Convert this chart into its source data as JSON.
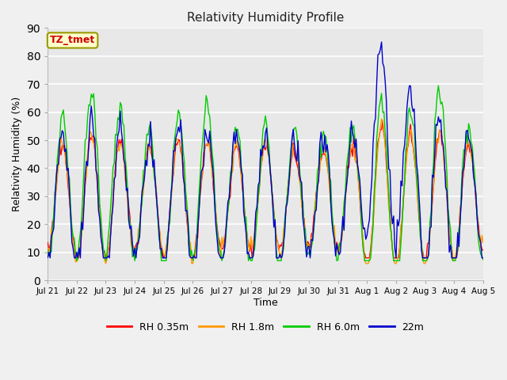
{
  "title": "Relativity Humidity Profile",
  "xlabel": "Time",
  "ylabel": "Relativity Humidity (%)",
  "ylim": [
    0,
    90
  ],
  "yticks": [
    0,
    10,
    20,
    30,
    40,
    50,
    60,
    70,
    80,
    90
  ],
  "annotation_text": "TZ_tmet",
  "annotation_color": "#cc0000",
  "annotation_box_color": "#ffffcc",
  "annotation_box_edge": "#999900",
  "legend_entries": [
    "RH 0.35m",
    "RH 1.8m",
    "RH 6.0m",
    "22m"
  ],
  "line_colors": [
    "#ff0000",
    "#ff9900",
    "#00cc00",
    "#0000cc"
  ],
  "background_color": "#f0f0f0",
  "plot_bg_color": "#e8e8e8",
  "grid_color": "#ffffff",
  "x_tick_labels": [
    "Jul 21",
    "Jul 22",
    "Jul 23",
    "Jul 24",
    "Jul 25",
    "Jul 26",
    "Jul 27",
    "Jul 28",
    "Jul 29",
    "Jul 30",
    "Jul 31",
    "Aug 1",
    "Aug 2",
    "Aug 3",
    "Aug 4",
    "Aug 5"
  ],
  "x_tick_positions": [
    0,
    1,
    2,
    3,
    4,
    5,
    6,
    7,
    8,
    9,
    10,
    11,
    12,
    13,
    14,
    15
  ]
}
